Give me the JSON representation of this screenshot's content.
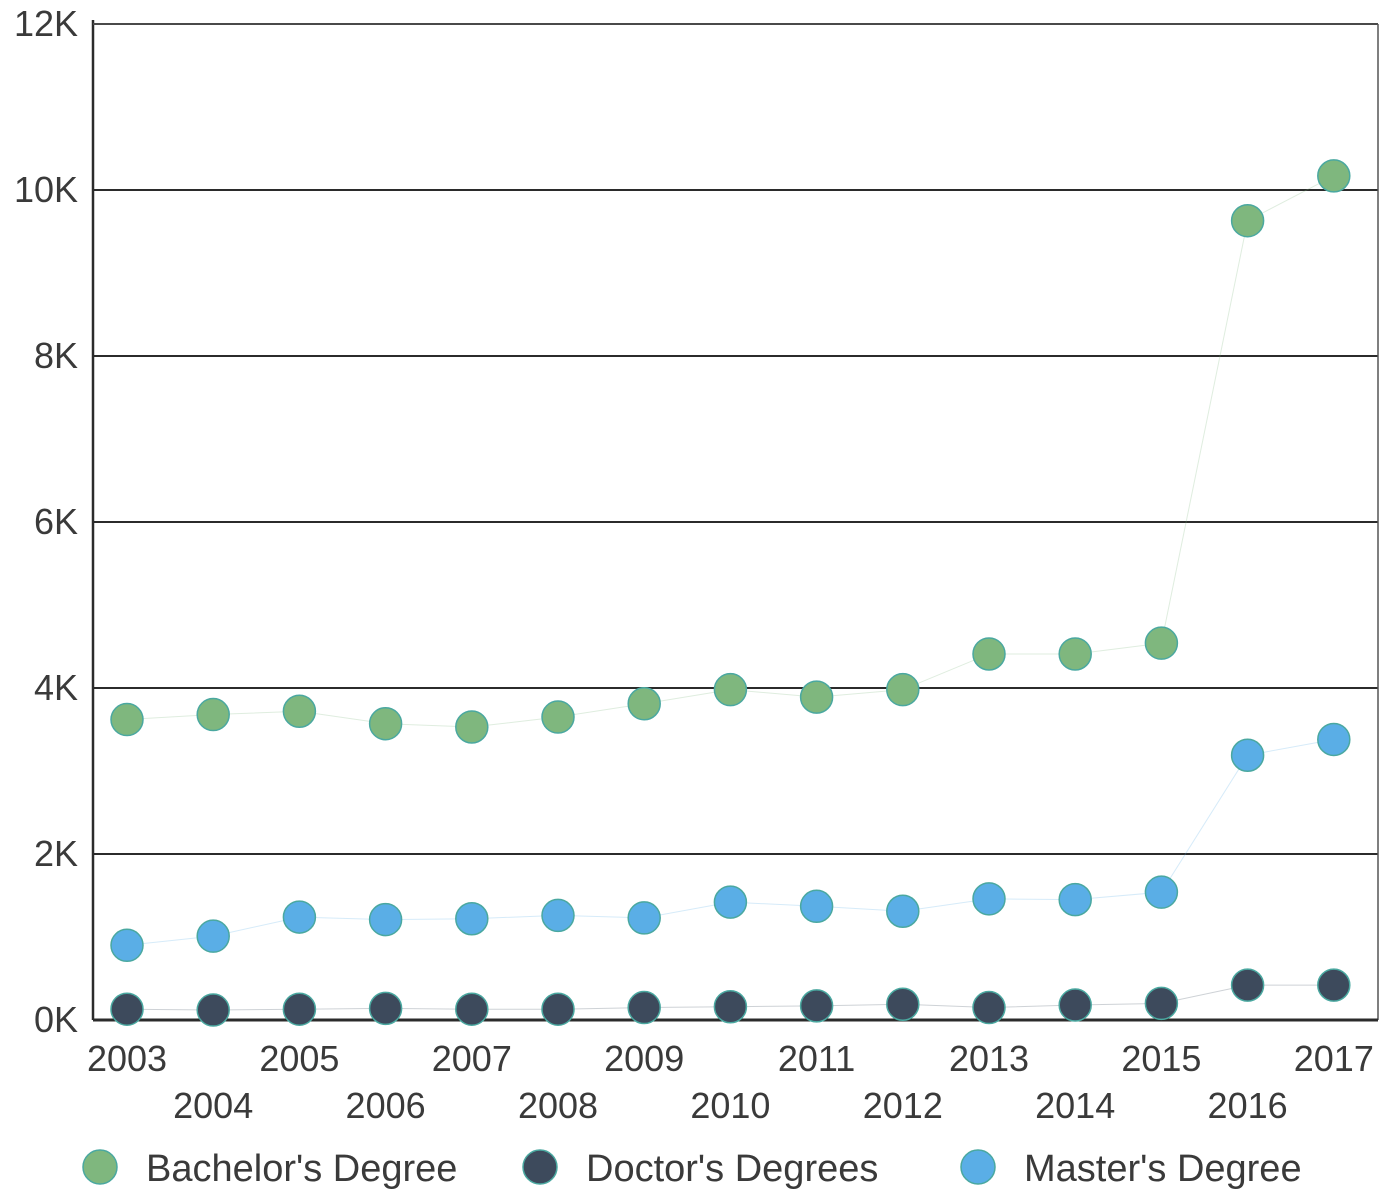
{
  "chart_data": {
    "type": "scatter",
    "title": "",
    "xlabel": "",
    "ylabel": "",
    "categories": [
      "2003",
      "2004",
      "2005",
      "2006",
      "2007",
      "2008",
      "2009",
      "2010",
      "2011",
      "2012",
      "2013",
      "2014",
      "2015",
      "2016",
      "2017"
    ],
    "y_ticks": [
      "0K",
      "2K",
      "4K",
      "6K",
      "8K",
      "10K",
      "12K"
    ],
    "y_tick_values": [
      0,
      2000,
      4000,
      6000,
      8000,
      10000,
      12000
    ],
    "ylim": [
      0,
      12000
    ],
    "grid": true,
    "legend_position": "bottom",
    "series": [
      {
        "name": "Bachelor's Degree",
        "color": "#7fb77e",
        "values": [
          3620,
          3680,
          3720,
          3570,
          3530,
          3650,
          3810,
          3980,
          3890,
          3980,
          4410,
          4410,
          4540,
          9630,
          10170
        ]
      },
      {
        "name": "Doctor's Degrees",
        "color": "#3d4a5c",
        "values": [
          130,
          120,
          130,
          140,
          130,
          130,
          150,
          160,
          170,
          190,
          150,
          180,
          200,
          420,
          420
        ]
      },
      {
        "name": "Master's Degree",
        "color": "#5aaee6",
        "values": [
          900,
          1010,
          1240,
          1210,
          1220,
          1260,
          1230,
          1420,
          1370,
          1310,
          1460,
          1450,
          1540,
          3190,
          3380
        ]
      }
    ]
  }
}
